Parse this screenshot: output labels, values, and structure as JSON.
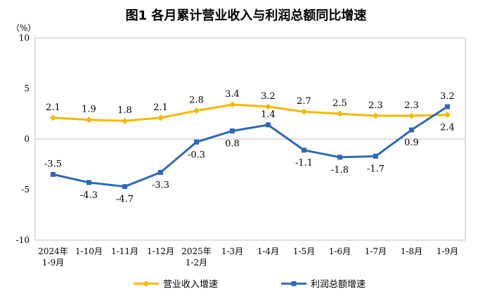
{
  "chart_data": {
    "type": "line",
    "title": "图1  各月累计营业收入与利润总额同比增速",
    "yunit": "（%）",
    "ylim": [
      -10,
      10
    ],
    "yticks": [
      -10,
      -5,
      0,
      5,
      10
    ],
    "categories": [
      [
        "2024年",
        "1-9月"
      ],
      [
        "1-10月"
      ],
      [
        "1-11月"
      ],
      [
        "1-12月"
      ],
      [
        "2025年",
        "1-2月"
      ],
      [
        "1-3月"
      ],
      [
        "1-4月"
      ],
      [
        "1-5月"
      ],
      [
        "1-6月"
      ],
      [
        "1-7月"
      ],
      [
        "1-8月"
      ],
      [
        "1-9月"
      ]
    ],
    "series": [
      {
        "name": "营业收入增速",
        "color": "#f5b800",
        "marker": "diamond",
        "values": [
          2.1,
          1.9,
          1.8,
          2.1,
          2.8,
          3.4,
          3.2,
          2.7,
          2.5,
          2.3,
          2.3,
          2.4
        ],
        "labels": [
          "2.1",
          "1.9",
          "1.8",
          "2.1",
          "2.8",
          "3.4",
          "3.2",
          "2.7",
          "2.5",
          "2.3",
          "2.3",
          "2.4"
        ]
      },
      {
        "name": "利润总额增速",
        "color": "#2e68b7",
        "marker": "square",
        "values": [
          -3.5,
          -4.3,
          -4.7,
          -3.3,
          -0.3,
          0.8,
          1.4,
          -1.1,
          -1.8,
          -1.7,
          0.9,
          3.2
        ],
        "labels": [
          "-3.5",
          "-4.3",
          "-4.7",
          "-3.3",
          "-0.3",
          "0.8",
          "1.4",
          "-1.1",
          "-1.8",
          "-1.7",
          "0.9",
          "3.2"
        ]
      }
    ],
    "legend": "bottom"
  }
}
